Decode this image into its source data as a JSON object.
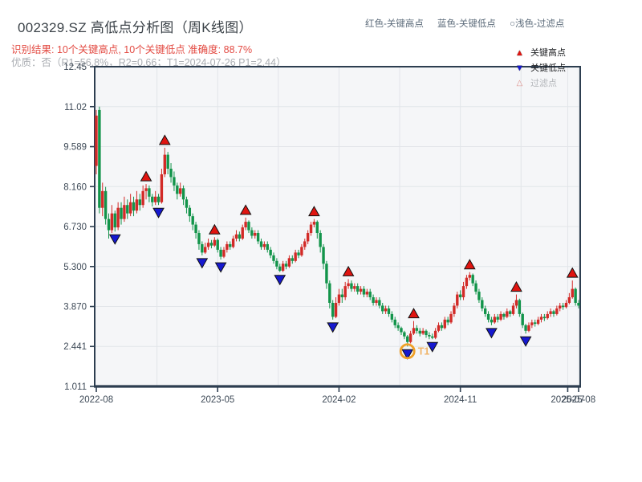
{
  "header": {
    "title": "002329.SZ 高低点分析图（周K线图）",
    "result_line": "识别结果: 10个关键高点, 10个关键低点  准确度: 88.7%",
    "quality_line": "优质：否（R1=56.8%，R2=0.66；T1=2024-07-26 P1=2.44）",
    "marker_legend": {
      "red": "红色-关键高点",
      "blue": "蓝色-关键低点",
      "filtered": "○浅色-过滤点"
    }
  },
  "plot_legend": {
    "high_symbol": "▲",
    "high_label": "关键高点",
    "low_symbol": "▼",
    "low_label": "关键低点",
    "filtered_symbol": "△",
    "filtered_label": "过滤点"
  },
  "chart_data": {
    "type": "candlestick",
    "title": "002329.SZ 高低点分析图（周K线图）",
    "y_tick_labels": [
      "12.45",
      "11.02",
      "9.589",
      "8.160",
      "6.730",
      "5.300",
      "3.870",
      "2.441",
      "1.011"
    ],
    "y_tick_values": [
      12.45,
      11.02,
      9.589,
      8.16,
      6.73,
      5.3,
      3.87,
      2.441,
      1.011
    ],
    "ylim": [
      1.011,
      12.45
    ],
    "x_ticks": [
      {
        "week": 0,
        "label": "2022-08"
      },
      {
        "week": 39,
        "label": "2023-05"
      },
      {
        "week": 78,
        "label": "2024-02"
      },
      {
        "week": 117,
        "label": "2024-11"
      },
      {
        "week": 151.5,
        "label": "2025-07"
      },
      {
        "week": 155,
        "label": "2025-08"
      }
    ],
    "x_gridline_weeks": [
      19.5,
      39,
      58.5,
      78,
      97.5,
      117,
      136.5,
      151.5,
      155
    ],
    "grid": true,
    "candles_format": [
      "open",
      "high",
      "low",
      "close"
    ],
    "candles": [
      [
        8.9,
        10.9,
        8.6,
        10.7
      ],
      [
        10.9,
        11.02,
        7.2,
        7.4
      ],
      [
        7.4,
        8.3,
        7.1,
        8.0
      ],
      [
        8.0,
        8.15,
        6.8,
        7.0
      ],
      [
        7.0,
        7.2,
        6.3,
        6.6
      ],
      [
        6.6,
        7.5,
        6.5,
        7.2
      ],
      [
        7.2,
        7.3,
        6.55,
        6.7
      ],
      [
        6.7,
        7.6,
        6.6,
        7.4
      ],
      [
        7.4,
        7.6,
        6.8,
        7.0
      ],
      [
        7.0,
        7.8,
        6.9,
        7.5
      ],
      [
        7.5,
        7.7,
        7.0,
        7.2
      ],
      [
        7.2,
        7.9,
        7.1,
        7.6
      ],
      [
        7.6,
        7.8,
        7.1,
        7.3
      ],
      [
        7.3,
        8.0,
        7.2,
        7.7
      ],
      [
        7.7,
        7.9,
        7.3,
        7.5
      ],
      [
        7.5,
        8.2,
        7.4,
        8.0
      ],
      [
        8.0,
        8.25,
        7.7,
        8.1
      ],
      [
        8.1,
        8.2,
        7.6,
        7.8
      ],
      [
        7.8,
        7.9,
        7.45,
        7.6
      ],
      [
        7.6,
        8.0,
        7.5,
        7.8
      ],
      [
        7.8,
        7.9,
        7.5,
        7.6
      ],
      [
        7.6,
        8.8,
        7.55,
        8.6
      ],
      [
        8.6,
        9.55,
        8.5,
        9.3
      ],
      [
        9.3,
        9.4,
        8.6,
        8.8
      ],
      [
        8.8,
        9.0,
        8.3,
        8.5
      ],
      [
        8.5,
        8.7,
        8.0,
        8.2
      ],
      [
        8.2,
        8.3,
        7.7,
        7.9
      ],
      [
        7.9,
        8.3,
        7.8,
        8.1
      ],
      [
        8.1,
        8.2,
        7.5,
        7.7
      ],
      [
        7.7,
        7.8,
        7.2,
        7.4
      ],
      [
        7.4,
        7.5,
        6.9,
        7.1
      ],
      [
        7.1,
        7.2,
        6.6,
        6.8
      ],
      [
        6.8,
        6.9,
        6.3,
        6.5
      ],
      [
        6.5,
        6.6,
        5.9,
        6.1
      ],
      [
        6.1,
        6.2,
        5.7,
        5.8
      ],
      [
        5.8,
        6.15,
        5.75,
        6.0
      ],
      [
        6.0,
        6.3,
        5.9,
        6.15
      ],
      [
        6.15,
        6.25,
        5.95,
        6.05
      ],
      [
        6.05,
        6.35,
        6.0,
        6.25
      ],
      [
        6.25,
        6.3,
        5.8,
        5.9
      ],
      [
        5.9,
        6.0,
        5.55,
        5.65
      ],
      [
        5.65,
        6.0,
        5.6,
        5.9
      ],
      [
        5.9,
        6.2,
        5.8,
        6.1
      ],
      [
        6.1,
        6.2,
        5.9,
        6.0
      ],
      [
        6.0,
        6.4,
        5.95,
        6.3
      ],
      [
        6.3,
        6.6,
        6.2,
        6.45
      ],
      [
        6.45,
        6.55,
        6.2,
        6.3
      ],
      [
        6.3,
        6.8,
        6.25,
        6.7
      ],
      [
        6.7,
        7.05,
        6.6,
        6.9
      ],
      [
        6.9,
        6.95,
        6.5,
        6.6
      ],
      [
        6.6,
        6.7,
        6.3,
        6.4
      ],
      [
        6.4,
        6.6,
        6.3,
        6.5
      ],
      [
        6.5,
        6.6,
        6.1,
        6.2
      ],
      [
        6.2,
        6.3,
        5.9,
        6.0
      ],
      [
        6.0,
        6.2,
        5.9,
        6.1
      ],
      [
        6.1,
        6.2,
        5.8,
        5.9
      ],
      [
        5.9,
        6.0,
        5.6,
        5.7
      ],
      [
        5.7,
        5.8,
        5.4,
        5.5
      ],
      [
        5.5,
        5.6,
        5.2,
        5.3
      ],
      [
        5.3,
        5.4,
        5.1,
        5.15
      ],
      [
        5.15,
        5.5,
        5.1,
        5.4
      ],
      [
        5.4,
        5.5,
        5.2,
        5.3
      ],
      [
        5.3,
        5.7,
        5.25,
        5.6
      ],
      [
        5.6,
        5.7,
        5.4,
        5.5
      ],
      [
        5.5,
        5.9,
        5.45,
        5.8
      ],
      [
        5.8,
        5.9,
        5.6,
        5.7
      ],
      [
        5.7,
        6.1,
        5.65,
        6.0
      ],
      [
        6.0,
        6.3,
        5.9,
        6.2
      ],
      [
        6.2,
        6.6,
        6.1,
        6.5
      ],
      [
        6.5,
        6.9,
        6.4,
        6.8
      ],
      [
        6.8,
        7.0,
        6.7,
        6.9
      ],
      [
        6.9,
        6.95,
        6.3,
        6.5
      ],
      [
        6.5,
        6.6,
        5.8,
        6.0
      ],
      [
        6.0,
        6.1,
        5.2,
        5.4
      ],
      [
        5.4,
        5.5,
        4.5,
        4.7
      ],
      [
        4.7,
        4.8,
        3.8,
        4.0
      ],
      [
        4.0,
        4.1,
        3.4,
        3.5
      ],
      [
        3.5,
        4.2,
        3.45,
        4.0
      ],
      [
        4.0,
        4.5,
        3.9,
        4.3
      ],
      [
        4.3,
        4.5,
        4.0,
        4.2
      ],
      [
        4.2,
        4.75,
        4.1,
        4.6
      ],
      [
        4.6,
        4.85,
        4.5,
        4.7
      ],
      [
        4.7,
        4.8,
        4.4,
        4.5
      ],
      [
        4.5,
        4.7,
        4.4,
        4.6
      ],
      [
        4.6,
        4.7,
        4.3,
        4.4
      ],
      [
        4.4,
        4.6,
        4.3,
        4.5
      ],
      [
        4.5,
        4.6,
        4.2,
        4.3
      ],
      [
        4.3,
        4.5,
        4.2,
        4.4
      ],
      [
        4.4,
        4.5,
        4.1,
        4.2
      ],
      [
        4.2,
        4.3,
        3.9,
        4.0
      ],
      [
        4.0,
        4.2,
        3.9,
        4.1
      ],
      [
        4.1,
        4.2,
        3.8,
        3.9
      ],
      [
        3.9,
        4.0,
        3.6,
        3.7
      ],
      [
        3.7,
        3.9,
        3.6,
        3.8
      ],
      [
        3.8,
        3.9,
        3.5,
        3.6
      ],
      [
        3.6,
        3.7,
        3.3,
        3.4
      ],
      [
        3.4,
        3.5,
        3.1,
        3.2
      ],
      [
        3.2,
        3.3,
        3.0,
        3.1
      ],
      [
        3.1,
        3.15,
        2.85,
        2.95
      ],
      [
        2.95,
        3.0,
        2.7,
        2.8
      ],
      [
        2.8,
        2.85,
        2.44,
        2.6
      ],
      [
        2.6,
        3.0,
        2.55,
        2.9
      ],
      [
        2.9,
        3.35,
        2.85,
        3.1
      ],
      [
        3.1,
        3.2,
        2.9,
        3.0
      ],
      [
        3.0,
        3.1,
        2.8,
        2.9
      ],
      [
        2.9,
        3.1,
        2.85,
        3.0
      ],
      [
        3.0,
        3.05,
        2.75,
        2.85
      ],
      [
        2.85,
        2.95,
        2.7,
        2.8
      ],
      [
        2.8,
        2.9,
        2.7,
        2.75
      ],
      [
        2.75,
        3.1,
        2.7,
        3.0
      ],
      [
        3.0,
        3.3,
        2.95,
        3.2
      ],
      [
        3.2,
        3.3,
        3.0,
        3.1
      ],
      [
        3.1,
        3.5,
        3.05,
        3.4
      ],
      [
        3.4,
        3.5,
        3.2,
        3.3
      ],
      [
        3.3,
        3.7,
        3.25,
        3.6
      ],
      [
        3.6,
        4.0,
        3.5,
        3.9
      ],
      [
        3.9,
        4.4,
        3.8,
        4.3
      ],
      [
        4.3,
        4.45,
        4.1,
        4.2
      ],
      [
        4.2,
        4.75,
        4.1,
        4.6
      ],
      [
        4.6,
        5.0,
        4.5,
        4.9
      ],
      [
        4.9,
        5.1,
        4.8,
        5.0
      ],
      [
        5.0,
        5.05,
        4.6,
        4.7
      ],
      [
        4.7,
        4.8,
        4.3,
        4.4
      ],
      [
        4.4,
        4.5,
        4.0,
        4.1
      ],
      [
        4.1,
        4.2,
        3.7,
        3.8
      ],
      [
        3.8,
        3.9,
        3.5,
        3.6
      ],
      [
        3.6,
        3.7,
        3.3,
        3.4
      ],
      [
        3.4,
        3.5,
        3.2,
        3.3
      ],
      [
        3.3,
        3.6,
        3.25,
        3.5
      ],
      [
        3.5,
        3.6,
        3.3,
        3.4
      ],
      [
        3.4,
        3.7,
        3.35,
        3.6
      ],
      [
        3.6,
        3.65,
        3.4,
        3.5
      ],
      [
        3.5,
        3.8,
        3.45,
        3.7
      ],
      [
        3.7,
        3.75,
        3.5,
        3.6
      ],
      [
        3.6,
        4.0,
        3.55,
        3.9
      ],
      [
        3.9,
        4.3,
        3.8,
        4.1
      ],
      [
        4.1,
        4.15,
        3.5,
        3.6
      ],
      [
        3.6,
        3.65,
        3.1,
        3.2
      ],
      [
        3.2,
        3.25,
        2.9,
        3.0
      ],
      [
        3.0,
        3.3,
        2.95,
        3.2
      ],
      [
        3.2,
        3.4,
        3.1,
        3.3
      ],
      [
        3.3,
        3.4,
        3.15,
        3.25
      ],
      [
        3.25,
        3.5,
        3.2,
        3.4
      ],
      [
        3.4,
        3.6,
        3.3,
        3.5
      ],
      [
        3.5,
        3.6,
        3.35,
        3.45
      ],
      [
        3.45,
        3.7,
        3.4,
        3.6
      ],
      [
        3.6,
        3.8,
        3.5,
        3.7
      ],
      [
        3.7,
        3.75,
        3.5,
        3.6
      ],
      [
        3.6,
        3.9,
        3.55,
        3.8
      ],
      [
        3.8,
        4.0,
        3.7,
        3.9
      ],
      [
        3.9,
        4.0,
        3.75,
        3.85
      ],
      [
        3.85,
        4.1,
        3.8,
        4.0
      ],
      [
        4.0,
        4.35,
        3.95,
        4.2
      ],
      [
        4.2,
        4.8,
        4.15,
        4.5
      ],
      [
        4.5,
        4.55,
        3.9,
        4.0
      ],
      [
        4.0,
        4.1,
        3.8,
        3.9
      ]
    ],
    "key_highs": [
      {
        "week": 16,
        "price": 8.25
      },
      {
        "week": 22,
        "price": 9.55
      },
      {
        "week": 38,
        "price": 6.35
      },
      {
        "week": 48,
        "price": 7.05
      },
      {
        "week": 70,
        "price": 7.0
      },
      {
        "week": 81,
        "price": 4.85
      },
      {
        "week": 102,
        "price": 3.35
      },
      {
        "week": 120,
        "price": 5.1
      },
      {
        "week": 135,
        "price": 4.3
      },
      {
        "week": 153,
        "price": 4.8
      }
    ],
    "key_lows": [
      {
        "week": 6,
        "price": 6.55
      },
      {
        "week": 20,
        "price": 7.5
      },
      {
        "week": 34,
        "price": 5.7
      },
      {
        "week": 40,
        "price": 5.55
      },
      {
        "week": 59,
        "price": 5.1
      },
      {
        "week": 76,
        "price": 3.4
      },
      {
        "week": 100,
        "price": 2.44
      },
      {
        "week": 108,
        "price": 2.7
      },
      {
        "week": 127,
        "price": 3.2
      },
      {
        "week": 138,
        "price": 2.9
      }
    ],
    "t1_point": {
      "week": 100,
      "price": 2.44,
      "label": "T1",
      "date": "2024-07-26"
    },
    "colors": {
      "up": "#d22a27",
      "down": "#12944a",
      "high_marker": "#e01410",
      "low_marker": "#1518cf",
      "marker_edge": "#111111",
      "t1_ring": "#f0a028",
      "t1_text": "#f0b468",
      "axis": "#2d3e50",
      "grid": "#e2e5e9",
      "plot_bg": "#f5f6f8",
      "tick_text": "#3e4a57"
    }
  }
}
